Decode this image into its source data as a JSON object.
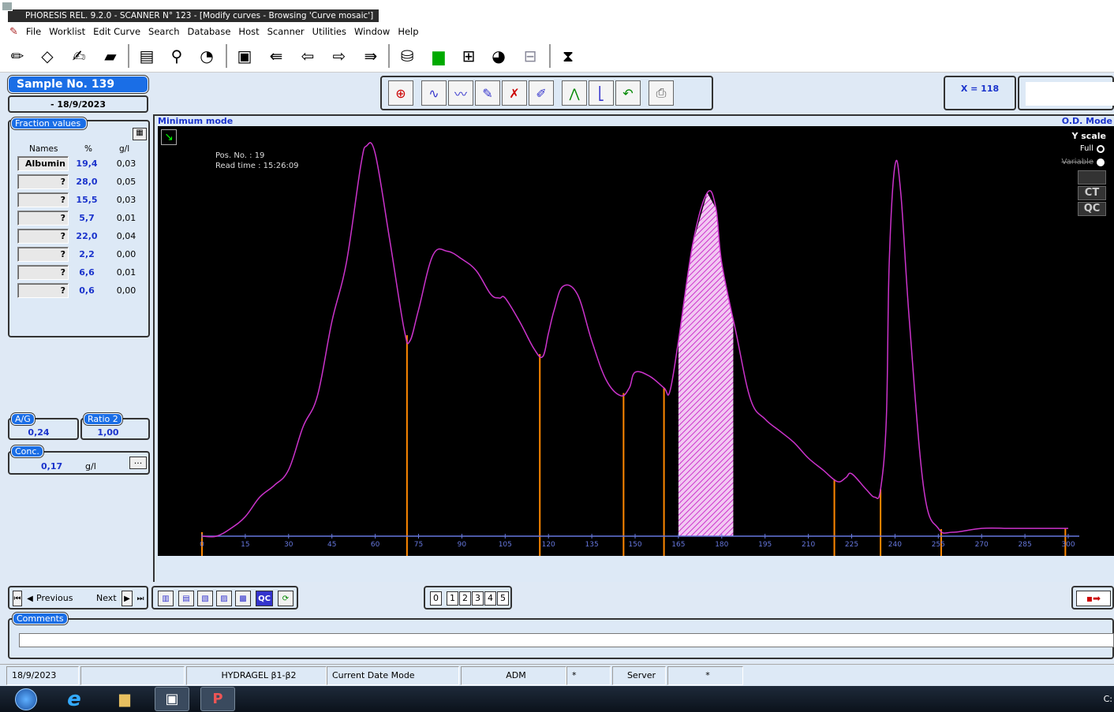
{
  "window": {
    "title": "PHORESIS REL. 9.2.0 - SCANNER N° 123 - [Modify curves - Browsing 'Curve mosaic']"
  },
  "menu": [
    "File",
    "Worklist",
    "Edit Curve",
    "Search",
    "Database",
    "Host",
    "Scanner",
    "Utilities",
    "Window",
    "Help"
  ],
  "sample": {
    "number_label": "Sample No.  139",
    "date": "- 18/9/2023"
  },
  "fractions": {
    "title": "Fraction values",
    "col_names": "Names",
    "col_pct": "%",
    "col_gl": "g/l",
    "rows": [
      {
        "name": "Albumin",
        "pct": "19,4",
        "gl": "0,03"
      },
      {
        "name": "?",
        "pct": "28,0",
        "gl": "0,05"
      },
      {
        "name": "?",
        "pct": "15,5",
        "gl": "0,03"
      },
      {
        "name": "?",
        "pct": "5,7",
        "gl": "0,01"
      },
      {
        "name": "?",
        "pct": "22,0",
        "gl": "0,04"
      },
      {
        "name": "?",
        "pct": "2,2",
        "gl": "0,00"
      },
      {
        "name": "?",
        "pct": "6,6",
        "gl": "0,01"
      },
      {
        "name": "?",
        "pct": "0,6",
        "gl": "0,00"
      }
    ]
  },
  "ratios": {
    "ag_label": "A/G",
    "ag_value": "0,24",
    "r2_label": "Ratio 2",
    "r2_value": "1,00"
  },
  "conc": {
    "label": "Conc.",
    "value": "0,17",
    "unit": "g/l",
    "more": "..."
  },
  "plot": {
    "mode_left": "Minimum mode",
    "mode_right": "O.D. Mode",
    "pos_text": "Pos. No. : 19",
    "read_time": "Read time : 15:26:09",
    "yscale_label": "Y scale",
    "yscale_full": "Full",
    "yscale_variable": "Variable",
    "ct": "CT",
    "qc": "QC",
    "x_readout": "X = 118",
    "x_ticks": [
      "0",
      "15",
      "30",
      "45",
      "60",
      "75",
      "90",
      "105",
      "120",
      "135",
      "150",
      "165",
      "180",
      "195",
      "210",
      "225",
      "240",
      "255",
      "270",
      "285",
      "300"
    ],
    "curve_color": "#cc33cc",
    "divider_color": "#ff8800",
    "axis_color": "#6677dd"
  },
  "nav": {
    "previous": "Previous",
    "next": "Next",
    "qc_btn": "QC"
  },
  "pages": [
    "0",
    "1",
    "2",
    "3",
    "4",
    "5"
  ],
  "comments": {
    "label": "Comments",
    "value": ""
  },
  "status": {
    "date": "18/9/2023",
    "empty1": "",
    "gel": "HYDRAGEL β1-β2",
    "mode": "Current Date Mode",
    "user": "ADM",
    "star1": "*",
    "server": "Server",
    "star2": "*"
  },
  "taskbar": {
    "clock": "C:"
  },
  "chart_data": {
    "type": "line",
    "x": [
      0,
      5,
      10,
      15,
      20,
      25,
      30,
      35,
      40,
      45,
      50,
      55,
      57,
      60,
      65,
      70,
      72,
      75,
      80,
      85,
      90,
      95,
      100,
      103,
      105,
      110,
      115,
      118,
      120,
      122,
      125,
      130,
      135,
      140,
      145,
      148,
      150,
      155,
      160,
      162,
      165,
      170,
      175,
      178,
      180,
      185,
      190,
      195,
      200,
      205,
      210,
      215,
      220,
      223,
      225,
      230,
      233,
      235,
      237,
      238,
      240,
      242,
      245,
      250,
      255,
      260,
      270,
      280,
      290,
      300
    ],
    "y": [
      0,
      0,
      2,
      5,
      10,
      13,
      17,
      28,
      36,
      55,
      70,
      95,
      100,
      98,
      76,
      53,
      50,
      58,
      72,
      73,
      71,
      68,
      62,
      61,
      61,
      55,
      48,
      46,
      52,
      58,
      64,
      62,
      50,
      40,
      36,
      38,
      42,
      41,
      38,
      37,
      50,
      75,
      88,
      84,
      70,
      52,
      35,
      30,
      27,
      24,
      20,
      17,
      14,
      15,
      16,
      12,
      10,
      12,
      30,
      70,
      95,
      88,
      55,
      12,
      2,
      1,
      2,
      2,
      2,
      2
    ],
    "xlim": [
      0,
      300
    ],
    "dividers": [
      71,
      117,
      146,
      160,
      219,
      235,
      256,
      299
    ],
    "highlighted_fraction": [
      165,
      184
    ]
  }
}
